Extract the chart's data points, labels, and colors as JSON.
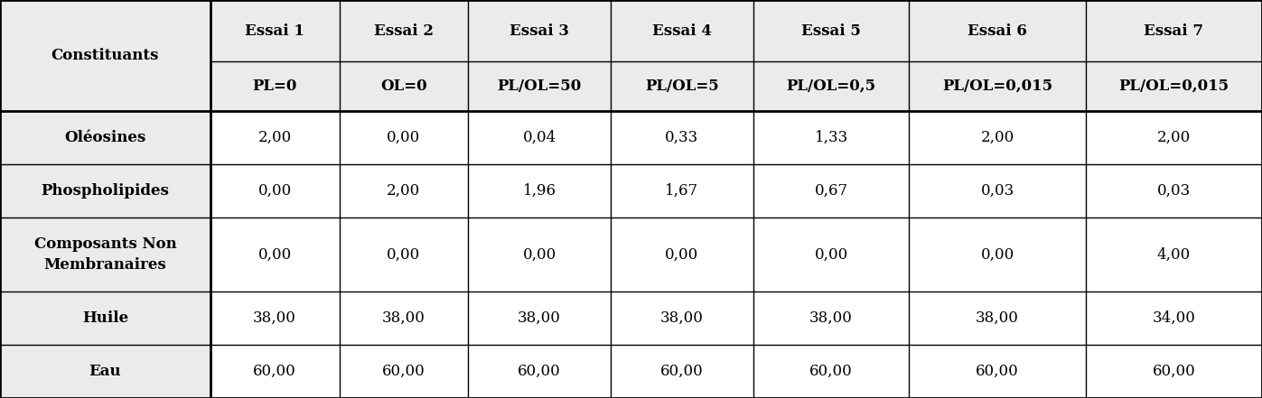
{
  "col_headers_row1": [
    "",
    "Essai 1",
    "Essai 2",
    "Essai 3",
    "Essai 4",
    "Essai 5",
    "Essai 6",
    "Essai 7"
  ],
  "col_headers_row2": [
    "Constituants",
    "PL=0",
    "OL=0",
    "PL/OL=50",
    "PL/OL=5",
    "PL/OL=0,5",
    "PL/OL=0,015",
    "PL/OL=0,015"
  ],
  "rows": [
    [
      "Oléosines",
      "2,00",
      "0,00",
      "0,04",
      "0,33",
      "1,33",
      "2,00",
      "2,00"
    ],
    [
      "Phospholipides",
      "0,00",
      "2,00",
      "1,96",
      "1,67",
      "0,67",
      "0,03",
      "0,03"
    ],
    [
      "Composants Non\nMembranaires",
      "0,00",
      "0,00",
      "0,00",
      "0,00",
      "0,00",
      "0,00",
      "4,00"
    ],
    [
      "Huile",
      "38,00",
      "38,00",
      "38,00",
      "38,00",
      "38,00",
      "38,00",
      "34,00"
    ],
    [
      "Eau",
      "60,00",
      "60,00",
      "60,00",
      "60,00",
      "60,00",
      "60,00",
      "60,00"
    ]
  ],
  "bg_color": "#ebebeb",
  "header_bg": "#ebebeb",
  "cell_bg": "#ffffff",
  "border_color": "#000000",
  "text_color": "#000000",
  "font_size": 12,
  "header_font_size": 12,
  "col_widths_raw": [
    1.55,
    0.95,
    0.95,
    1.05,
    1.05,
    1.15,
    1.3,
    1.3
  ],
  "row_heights_raw": [
    1.55,
    1.25,
    1.35,
    1.35,
    1.85,
    1.35,
    1.35
  ],
  "lw_thin": 1.0,
  "lw_thick": 2.0
}
